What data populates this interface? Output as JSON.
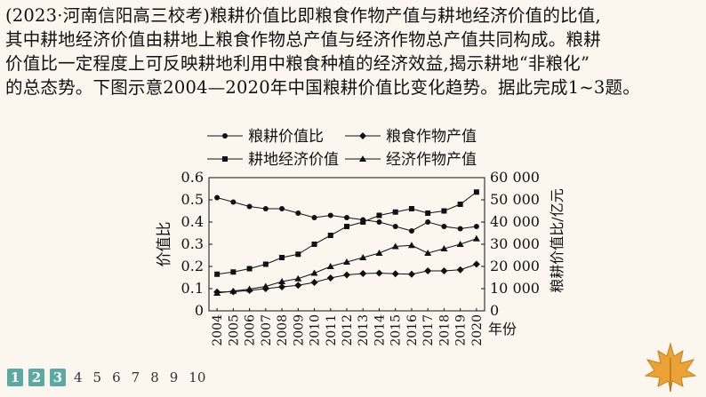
{
  "question": {
    "lines": [
      "(2023·河南信阳高三校考)粮耕价值比即粮食作物产值与耕地经济价值的比值,",
      "其中耕地经济价值由耕地上粮食作物总产值与经济作物总产值共同构成。粮耕",
      "价值比一定程度上可反映耕地利用中粮食种植的经济效益,揭示耕地“非粮化”",
      "的总态势。下图示意2004—2020年中国粮耕价值比变化趋势。据此完成1~3题。"
    ]
  },
  "chart_data": {
    "type": "line",
    "x": [
      "2004",
      "2005",
      "2006",
      "2007",
      "2008",
      "2009",
      "2010",
      "2011",
      "2012",
      "2013",
      "2014",
      "2015",
      "2016",
      "2017",
      "2018",
      "2019",
      "2020"
    ],
    "xlabel": "年份",
    "ylabel_left": "价值比",
    "ylabel_right": "粮耕价值比/亿元",
    "ylim_left": [
      0,
      0.6
    ],
    "ylim_right": [
      0,
      60000
    ],
    "yticks_left": [
      "0",
      "0.1",
      "0.2",
      "0.3",
      "0.4",
      "0.5",
      "0.6"
    ],
    "yticks_right": [
      "0",
      "10 000",
      "20 000",
      "30 000",
      "40 000",
      "50 000",
      "60 000"
    ],
    "series": [
      {
        "name": "粮耕价值比",
        "marker": "circle",
        "axis": "left",
        "values": [
          0.51,
          0.49,
          0.47,
          0.46,
          0.46,
          0.44,
          0.42,
          0.43,
          0.42,
          0.41,
          0.4,
          0.38,
          0.36,
          0.4,
          0.38,
          0.37,
          0.38
        ]
      },
      {
        "name": "粮食作物产值",
        "marker": "diamond",
        "axis": "right",
        "values": [
          8500,
          8600,
          9200,
          10000,
          10800,
          11500,
          12800,
          14800,
          16200,
          16800,
          17000,
          16700,
          16500,
          18000,
          18000,
          18500,
          21000
        ]
      },
      {
        "name": "耕地经济价值",
        "marker": "square",
        "axis": "right",
        "values": [
          16500,
          17500,
          19000,
          21000,
          24000,
          25500,
          30000,
          34000,
          38000,
          40000,
          43000,
          44500,
          46000,
          44000,
          45000,
          48000,
          53500
        ]
      },
      {
        "name": "经济作物产值",
        "marker": "triangle",
        "axis": "right",
        "values": [
          8000,
          8900,
          9800,
          11000,
          13200,
          14500,
          17000,
          20000,
          22000,
          24000,
          26000,
          29000,
          29500,
          26000,
          28000,
          30000,
          32500
        ]
      }
    ]
  },
  "nav": {
    "pages": [
      "1",
      "2",
      "3",
      "4",
      "5",
      "6",
      "7",
      "8",
      "9",
      "10"
    ],
    "active": [
      "1",
      "2",
      "3"
    ]
  },
  "colors": {
    "background": "#fbf7ef",
    "nav_active": "#5aa9a2",
    "leaf": "#e9a233"
  }
}
